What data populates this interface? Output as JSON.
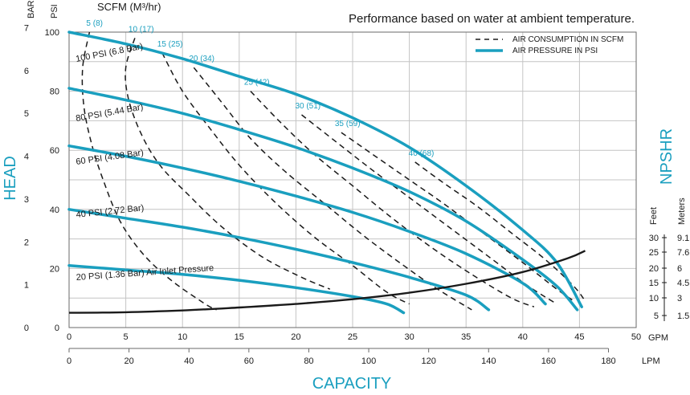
{
  "chart_data": {
    "type": "line",
    "title": "Performance based on water at ambient temperature.",
    "xlabel": "CAPACITY",
    "ylabel": "HEAD",
    "ylabel_right": "NPSHR",
    "grid": true,
    "legend_position": "top-right",
    "legend": [
      {
        "label": "AIR CONSUMPTION IN SCFM",
        "style": "dashed",
        "color": "#1a1a1a"
      },
      {
        "label": "AIR PRESSURE IN PSI",
        "style": "solid",
        "color": "#1a9fbf"
      }
    ],
    "x_axis_gpm": {
      "unit": "GPM",
      "min": 0,
      "max": 50,
      "ticks": [
        "0",
        "5",
        "10",
        "15",
        "20",
        "25",
        "30",
        "35",
        "40",
        "45",
        "50"
      ]
    },
    "x_axis_lpm": {
      "unit": "LPM",
      "ticks": [
        "0",
        "20",
        "40",
        "60",
        "80",
        "100",
        "120",
        "140",
        "160",
        "180"
      ]
    },
    "y_axis_psi": {
      "unit": "PSI",
      "min": 0,
      "max": 100,
      "ticks": [
        "0",
        "20",
        "40",
        "60",
        "80",
        "100"
      ]
    },
    "y_axis_bar": {
      "unit": "BAR",
      "ticks": [
        "0",
        "1",
        "2",
        "3",
        "4",
        "5",
        "6",
        "7"
      ]
    },
    "npshr_feet": {
      "unit": "Feet",
      "ticks": [
        "5",
        "10",
        "15",
        "20",
        "25",
        "30"
      ]
    },
    "npshr_meters": {
      "unit": "Meters",
      "ticks": [
        "1.5",
        "3",
        "4.5",
        "6",
        "7.6",
        "9.1"
      ]
    },
    "air_consumption_header": "SCFM (M³/hr)",
    "pressure_series": [
      {
        "label": "100 PSI (6.8 Bar)",
        "points": [
          [
            0,
            100
          ],
          [
            5,
            96
          ],
          [
            10,
            91
          ],
          [
            15,
            85
          ],
          [
            20,
            79
          ],
          [
            25,
            71
          ],
          [
            30,
            61
          ],
          [
            35,
            48
          ],
          [
            40,
            33
          ],
          [
            43,
            22
          ],
          [
            45.2,
            7
          ]
        ]
      },
      {
        "label": "80 PSI (5.44 Bar)",
        "points": [
          [
            0,
            81
          ],
          [
            5,
            77
          ],
          [
            10,
            72.5
          ],
          [
            15,
            67
          ],
          [
            20,
            61
          ],
          [
            25,
            54
          ],
          [
            30,
            46
          ],
          [
            35,
            36
          ],
          [
            40,
            23
          ],
          [
            43,
            14
          ],
          [
            44.8,
            6
          ]
        ]
      },
      {
        "label": "60 PSI (4.08 Bar)",
        "points": [
          [
            0,
            61.5
          ],
          [
            5,
            58
          ],
          [
            10,
            54
          ],
          [
            15,
            49.5
          ],
          [
            20,
            44.5
          ],
          [
            25,
            39
          ],
          [
            30,
            32.5
          ],
          [
            35,
            25
          ],
          [
            40,
            15
          ],
          [
            42,
            8
          ]
        ]
      },
      {
        "label": "40 PSI (2.72 Bar)",
        "points": [
          [
            0,
            40
          ],
          [
            5,
            37
          ],
          [
            10,
            34
          ],
          [
            15,
            30.5
          ],
          [
            20,
            26.5
          ],
          [
            25,
            22
          ],
          [
            30,
            17
          ],
          [
            35,
            11
          ],
          [
            37,
            6
          ]
        ]
      },
      {
        "label": "20 PSI (1.36 Bar) Air Inlet Pressure",
        "points": [
          [
            0,
            21
          ],
          [
            5,
            19.5
          ],
          [
            10,
            18
          ],
          [
            15,
            16
          ],
          [
            20,
            13.5
          ],
          [
            25,
            10.5
          ],
          [
            28,
            8
          ],
          [
            29.5,
            5
          ]
        ]
      }
    ],
    "air_consumption_series": [
      {
        "label": "5 (8)",
        "points": [
          [
            1.8,
            100
          ],
          [
            1.2,
            88
          ],
          [
            1.3,
            75
          ],
          [
            2,
            62
          ],
          [
            3,
            50
          ],
          [
            4.5,
            36
          ],
          [
            6.5,
            25
          ],
          [
            9,
            16
          ],
          [
            12,
            8
          ],
          [
            13,
            6
          ]
        ]
      },
      {
        "label": "10 (17)",
        "points": [
          [
            5.8,
            98
          ],
          [
            5,
            88
          ],
          [
            5.2,
            78
          ],
          [
            6.3,
            66
          ],
          [
            8,
            55
          ],
          [
            10.5,
            45
          ],
          [
            13.5,
            34
          ],
          [
            17,
            24
          ],
          [
            20.5,
            17
          ],
          [
            23,
            13
          ]
        ]
      },
      {
        "label": "15 (25)",
        "points": [
          [
            8.2,
            93
          ],
          [
            10,
            80
          ],
          [
            12.5,
            67
          ],
          [
            15,
            55
          ],
          [
            18,
            43
          ],
          [
            21.5,
            31
          ],
          [
            25,
            21
          ],
          [
            28,
            12
          ],
          [
            30,
            8
          ]
        ]
      },
      {
        "label": "20 (34)",
        "points": [
          [
            11,
            88
          ],
          [
            13.5,
            76
          ],
          [
            16,
            64
          ],
          [
            19,
            53
          ],
          [
            22.5,
            42
          ],
          [
            26,
            31
          ],
          [
            29.5,
            21
          ],
          [
            32.5,
            13
          ],
          [
            35.5,
            6
          ]
        ]
      },
      {
        "label": "25 (42)",
        "points": [
          [
            16,
            80
          ],
          [
            18.5,
            70
          ],
          [
            21.5,
            59
          ],
          [
            25,
            48
          ],
          [
            28.5,
            37
          ],
          [
            32,
            27
          ],
          [
            35.5,
            18
          ],
          [
            39,
            10
          ],
          [
            41,
            7
          ]
        ]
      },
      {
        "label": "30 (51)",
        "points": [
          [
            20.5,
            72
          ],
          [
            23.5,
            63
          ],
          [
            26.5,
            54
          ],
          [
            30,
            44
          ],
          [
            33.5,
            34
          ],
          [
            37,
            24
          ],
          [
            40.5,
            14
          ],
          [
            43,
            8
          ]
        ]
      },
      {
        "label": "35 (59)",
        "points": [
          [
            24,
            66
          ],
          [
            27,
            58
          ],
          [
            30,
            50
          ],
          [
            33,
            42
          ],
          [
            36.5,
            32
          ],
          [
            40,
            22
          ],
          [
            43,
            13
          ],
          [
            44.5,
            9
          ]
        ]
      },
      {
        "label": "40 (68)",
        "points": [
          [
            30.5,
            56
          ],
          [
            33,
            49
          ],
          [
            36,
            41
          ],
          [
            39,
            32
          ],
          [
            42,
            23
          ],
          [
            44.5,
            14
          ],
          [
            45.5,
            9
          ]
        ]
      }
    ],
    "npshr_series": {
      "points": [
        [
          0,
          5
        ],
        [
          5,
          5.2
        ],
        [
          10,
          5.8
        ],
        [
          15,
          6.8
        ],
        [
          20,
          8
        ],
        [
          25,
          9.6
        ],
        [
          30,
          11.8
        ],
        [
          35,
          14.8
        ],
        [
          40,
          18.8
        ],
        [
          44,
          23.5
        ],
        [
          45.5,
          26
        ]
      ]
    }
  }
}
